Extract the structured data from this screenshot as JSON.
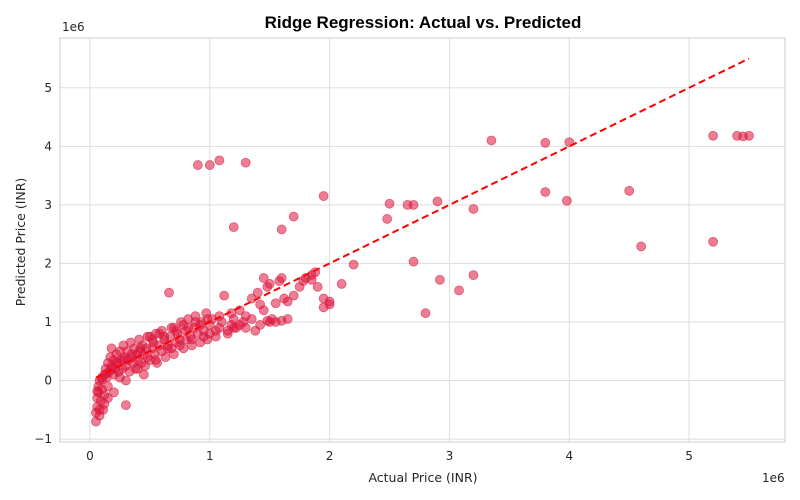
{
  "chart_data": {
    "type": "scatter",
    "title": "Ridge Regression: Actual vs. Predicted",
    "xlabel": "Actual Price (INR)",
    "ylabel": "Predicted Price (INR)",
    "x_offset_label": "1e6",
    "y_offset_label": "1e6",
    "xlim": [
      -0.25,
      5.8
    ],
    "ylim": [
      -1.05,
      5.85
    ],
    "x_ticks": [
      0,
      1,
      2,
      3,
      4,
      5
    ],
    "y_ticks": [
      -1,
      0,
      1,
      2,
      3,
      4,
      5
    ],
    "x_tick_labels": [
      "0",
      "1",
      "2",
      "3",
      "4",
      "5"
    ],
    "y_tick_labels": [
      "−1",
      "0",
      "1",
      "2",
      "3",
      "4",
      "5"
    ],
    "grid": true,
    "point_color": "#dc143c",
    "line_color": "#ff0000",
    "reference_line": {
      "x": [
        0.05,
        5.5
      ],
      "y": [
        0.05,
        5.5
      ],
      "style": "dashed"
    },
    "points": [
      [
        0.05,
        -0.7
      ],
      [
        0.05,
        -0.55
      ],
      [
        0.06,
        -0.45
      ],
      [
        0.06,
        -0.3
      ],
      [
        0.07,
        -0.2
      ],
      [
        0.07,
        -0.1
      ],
      [
        0.08,
        0.0
      ],
      [
        0.08,
        -0.6
      ],
      [
        0.09,
        -0.35
      ],
      [
        0.1,
        -0.15
      ],
      [
        0.1,
        0.05
      ],
      [
        0.11,
        -0.5
      ],
      [
        0.12,
        -0.25
      ],
      [
        0.12,
        0.1
      ],
      [
        0.13,
        0.2
      ],
      [
        0.14,
        0.05
      ],
      [
        0.15,
        0.3
      ],
      [
        0.15,
        -0.1
      ],
      [
        0.16,
        0.15
      ],
      [
        0.17,
        0.4
      ],
      [
        0.18,
        0.25
      ],
      [
        0.18,
        0.55
      ],
      [
        0.2,
        0.1
      ],
      [
        0.2,
        0.35
      ],
      [
        0.21,
        0.2
      ],
      [
        0.22,
        0.45
      ],
      [
        0.23,
        0.3
      ],
      [
        0.24,
        0.15
      ],
      [
        0.25,
        0.5
      ],
      [
        0.25,
        0.05
      ],
      [
        0.26,
        0.35
      ],
      [
        0.27,
        0.2
      ],
      [
        0.28,
        0.6
      ],
      [
        0.29,
        0.4
      ],
      [
        0.3,
        0.25
      ],
      [
        0.3,
        -0.42
      ],
      [
        0.31,
        0.5
      ],
      [
        0.32,
        0.35
      ],
      [
        0.33,
        0.15
      ],
      [
        0.34,
        0.65
      ],
      [
        0.35,
        0.4
      ],
      [
        0.36,
        0.3
      ],
      [
        0.37,
        0.55
      ],
      [
        0.38,
        0.2
      ],
      [
        0.39,
        0.45
      ],
      [
        0.4,
        0.35
      ],
      [
        0.41,
        0.7
      ],
      [
        0.42,
        0.5
      ],
      [
        0.43,
        0.3
      ],
      [
        0.44,
        0.6
      ],
      [
        0.45,
        0.45
      ],
      [
        0.46,
        0.25
      ],
      [
        0.47,
        0.55
      ],
      [
        0.48,
        0.4
      ],
      [
        0.5,
        0.75
      ],
      [
        0.5,
        0.35
      ],
      [
        0.52,
        0.55
      ],
      [
        0.53,
        0.65
      ],
      [
        0.54,
        0.45
      ],
      [
        0.55,
        0.8
      ],
      [
        0.56,
        0.3
      ],
      [
        0.58,
        0.6
      ],
      [
        0.6,
        0.5
      ],
      [
        0.6,
        0.85
      ],
      [
        0.62,
        0.7
      ],
      [
        0.63,
        0.4
      ],
      [
        0.65,
        0.6
      ],
      [
        0.66,
        1.5
      ],
      [
        0.67,
        0.75
      ],
      [
        0.68,
        0.55
      ],
      [
        0.7,
        0.9
      ],
      [
        0.7,
        0.45
      ],
      [
        0.72,
        0.65
      ],
      [
        0.73,
        0.8
      ],
      [
        0.75,
        0.7
      ],
      [
        0.76,
        1.0
      ],
      [
        0.78,
        0.55
      ],
      [
        0.8,
        0.85
      ],
      [
        0.8,
        0.7
      ],
      [
        0.82,
        1.05
      ],
      [
        0.84,
        0.75
      ],
      [
        0.85,
        0.6
      ],
      [
        0.87,
        0.9
      ],
      [
        0.88,
        1.1
      ],
      [
        0.9,
        0.8
      ],
      [
        0.92,
        0.65
      ],
      [
        0.93,
        1.0
      ],
      [
        0.95,
        0.85
      ],
      [
        0.97,
        1.15
      ],
      [
        0.98,
        0.7
      ],
      [
        1.0,
        0.95
      ],
      [
        1.0,
        0.8
      ],
      [
        1.02,
        1.05
      ],
      [
        1.05,
        0.75
      ],
      [
        1.08,
        0.9
      ],
      [
        1.1,
        1.0
      ],
      [
        1.12,
        1.45
      ],
      [
        1.15,
        0.85
      ],
      [
        1.18,
        0.95
      ],
      [
        1.2,
        1.05
      ],
      [
        1.22,
        0.9
      ],
      [
        1.25,
        1.2
      ],
      [
        1.28,
        1.0
      ],
      [
        1.3,
        1.1
      ],
      [
        1.35,
        1.4
      ],
      [
        1.4,
        1.5
      ],
      [
        1.42,
        1.3
      ],
      [
        1.45,
        1.75
      ],
      [
        1.48,
        1.6
      ],
      [
        1.5,
        1.65
      ],
      [
        1.5,
        1.0
      ],
      [
        1.52,
        1.05
      ],
      [
        1.55,
        1.0
      ],
      [
        1.58,
        1.7
      ],
      [
        1.6,
        1.75
      ],
      [
        1.62,
        1.4
      ],
      [
        1.65,
        1.35
      ],
      [
        1.7,
        1.45
      ],
      [
        1.75,
        1.6
      ],
      [
        1.78,
        1.7
      ],
      [
        1.8,
        1.75
      ],
      [
        1.85,
        1.8
      ],
      [
        1.88,
        1.85
      ],
      [
        1.9,
        1.6
      ],
      [
        1.95,
        1.4
      ],
      [
        1.95,
        1.25
      ],
      [
        2.0,
        1.3
      ],
      [
        2.0,
        1.35
      ],
      [
        1.2,
        0.9
      ],
      [
        1.25,
        0.95
      ],
      [
        1.3,
        0.9
      ],
      [
        1.38,
        0.85
      ],
      [
        1.42,
        0.95
      ],
      [
        1.48,
        1.02
      ],
      [
        1.6,
        1.02
      ],
      [
        1.65,
        1.05
      ],
      [
        0.4,
        0.2
      ],
      [
        0.55,
        0.35
      ],
      [
        0.45,
        0.1
      ],
      [
        0.3,
        0.0
      ],
      [
        0.2,
        -0.2
      ],
      [
        0.15,
        -0.3
      ],
      [
        0.12,
        -0.4
      ],
      [
        0.08,
        -0.5
      ],
      [
        0.65,
        0.55
      ],
      [
        0.75,
        0.6
      ],
      [
        0.85,
        0.7
      ],
      [
        0.95,
        0.75
      ],
      [
        1.05,
        0.85
      ],
      [
        1.15,
        0.8
      ],
      [
        0.9,
        3.68
      ],
      [
        1.0,
        3.68
      ],
      [
        1.08,
        3.76
      ],
      [
        1.3,
        3.72
      ],
      [
        1.2,
        2.62
      ],
      [
        1.6,
        2.58
      ],
      [
        1.7,
        2.8
      ],
      [
        1.95,
        3.15
      ],
      [
        2.2,
        1.98
      ],
      [
        2.5,
        3.02
      ],
      [
        2.48,
        2.76
      ],
      [
        2.65,
        3.0
      ],
      [
        2.7,
        3.0
      ],
      [
        2.7,
        2.03
      ],
      [
        2.8,
        1.15
      ],
      [
        2.9,
        3.06
      ],
      [
        2.92,
        1.72
      ],
      [
        3.08,
        1.54
      ],
      [
        3.2,
        1.8
      ],
      [
        3.2,
        2.93
      ],
      [
        3.35,
        4.1
      ],
      [
        3.8,
        4.06
      ],
      [
        3.8,
        3.22
      ],
      [
        3.98,
        3.07
      ],
      [
        4.0,
        4.07
      ],
      [
        4.5,
        3.24
      ],
      [
        4.6,
        2.29
      ],
      [
        5.2,
        2.37
      ],
      [
        5.2,
        4.18
      ],
      [
        5.4,
        4.18
      ],
      [
        5.5,
        4.18
      ],
      [
        5.45,
        4.17
      ],
      [
        1.85,
        1.72
      ],
      [
        1.55,
        1.32
      ],
      [
        2.1,
        1.65
      ],
      [
        1.45,
        1.2
      ],
      [
        1.35,
        1.05
      ],
      [
        0.92,
        0.95
      ],
      [
        0.82,
        0.9
      ],
      [
        0.72,
        0.85
      ],
      [
        0.62,
        0.75
      ],
      [
        0.52,
        0.7
      ],
      [
        0.42,
        0.55
      ],
      [
        0.35,
        0.45
      ],
      [
        0.28,
        0.35
      ],
      [
        0.22,
        0.3
      ],
      [
        0.18,
        0.2
      ],
      [
        0.14,
        0.12
      ],
      [
        0.1,
        0.02
      ],
      [
        0.06,
        -0.18
      ],
      [
        0.48,
        0.75
      ],
      [
        0.58,
        0.8
      ],
      [
        0.68,
        0.9
      ],
      [
        0.78,
        0.95
      ],
      [
        0.88,
        1.0
      ],
      [
        0.98,
        1.05
      ],
      [
        1.08,
        1.1
      ],
      [
        1.18,
        1.15
      ]
    ]
  }
}
